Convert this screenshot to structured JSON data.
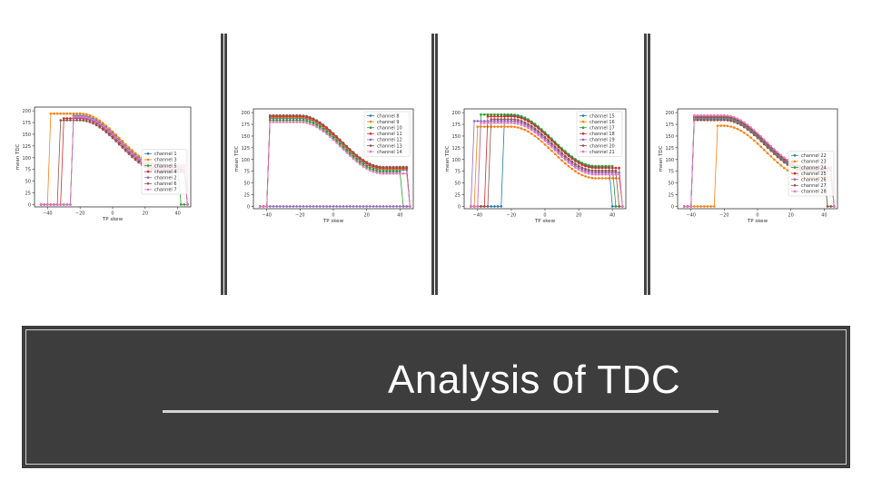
{
  "banner": {
    "title": "Analysis of TDC"
  },
  "chart_data": [
    {
      "type": "line",
      "xlabel": "TP skew",
      "ylabel": "mean TDC",
      "xlim": [
        -48,
        48
      ],
      "ylim": [
        -5,
        208
      ],
      "xticks": [
        -40,
        -20,
        0,
        20,
        40
      ],
      "yticks": [
        0,
        25,
        50,
        75,
        100,
        125,
        150,
        175,
        200
      ],
      "xtick_labels": [
        "−40",
        "−20",
        "0",
        "20",
        "40"
      ],
      "ytick_labels": [
        "0",
        "25",
        "50",
        "75",
        "100",
        "125",
        "150",
        "175",
        "200"
      ],
      "legend_position": "bottom-right",
      "series": [
        {
          "name": "channel 1",
          "color": "#1f77b4",
          "offset": 0,
          "onset": -25,
          "dropout": 46
        },
        {
          "name": "channel 3",
          "color": "#ff7f0e",
          "offset": 4,
          "onset": -38,
          "dropout": 46
        },
        {
          "name": "channel 5",
          "color": "#2ca02c",
          "offset": -2,
          "onset": -25,
          "dropout": 43
        },
        {
          "name": "channel 4",
          "color": "#d62728",
          "offset": -6,
          "onset": -30,
          "dropout": 46
        },
        {
          "name": "channel 2",
          "color": "#9467bd",
          "offset": -4,
          "onset": -25,
          "dropout": 46
        },
        {
          "name": "channel 6",
          "color": "#8c564b",
          "offset": -10,
          "onset": -33,
          "dropout": 46
        },
        {
          "name": "channel 7",
          "color": "#e377c2",
          "offset": -2,
          "onset": -25,
          "dropout": 46
        }
      ]
    },
    {
      "type": "line",
      "xlabel": "TP skew",
      "ylabel": "mean TDC",
      "xlim": [
        -48,
        48
      ],
      "ylim": [
        -5,
        208
      ],
      "xticks": [
        -40,
        -20,
        0,
        20,
        40
      ],
      "yticks": [
        0,
        25,
        50,
        75,
        100,
        125,
        150,
        175,
        200
      ],
      "xtick_labels": [
        "−40",
        "−20",
        "0",
        "20",
        "40"
      ],
      "ytick_labels": [
        "0",
        "25",
        "50",
        "75",
        "100",
        "125",
        "150",
        "175",
        "200"
      ],
      "legend_position": "top-right",
      "series": [
        {
          "name": "channel 8",
          "color": "#1f77b4",
          "offset": -2,
          "onset": -38,
          "dropout": 46
        },
        {
          "name": "channel 9",
          "color": "#ff7f0e",
          "offset": 0,
          "onset": -38,
          "dropout": 46
        },
        {
          "name": "channel 10",
          "color": "#2ca02c",
          "offset": -6,
          "onset": -38,
          "dropout": 43
        },
        {
          "name": "channel 11",
          "color": "#d62728",
          "offset": 2,
          "onset": -38,
          "dropout": 46
        },
        {
          "name": "channel 12",
          "color": "#9467bd",
          "offset": -8,
          "onset": 100,
          "dropout": 46
        },
        {
          "name": "channel 13",
          "color": "#8c564b",
          "offset": 4,
          "onset": -38,
          "dropout": 46
        },
        {
          "name": "channel 14",
          "color": "#e377c2",
          "offset": -10,
          "onset": -38,
          "dropout": 46
        }
      ]
    },
    {
      "type": "line",
      "xlabel": "TP skew",
      "ylabel": "mean TDC",
      "xlim": [
        -48,
        48
      ],
      "ylim": [
        -5,
        208
      ],
      "xticks": [
        -40,
        -20,
        0,
        20,
        40
      ],
      "yticks": [
        0,
        25,
        50,
        75,
        100,
        125,
        150,
        175,
        200
      ],
      "xtick_labels": [
        "−40",
        "−20",
        "0",
        "20",
        "40"
      ],
      "ytick_labels": [
        "0",
        "25",
        "50",
        "75",
        "100",
        "125",
        "150",
        "175",
        "200"
      ],
      "legend_position": "top-right",
      "series": [
        {
          "name": "channel 15",
          "color": "#1f77b4",
          "offset": 4,
          "onset": -25,
          "dropout": 41
        },
        {
          "name": "channel 16",
          "color": "#ff7f0e",
          "offset": -20,
          "onset": -40,
          "dropout": 47
        },
        {
          "name": "channel 17",
          "color": "#2ca02c",
          "offset": 6,
          "onset": -38,
          "dropout": 43
        },
        {
          "name": "channel 18",
          "color": "#d62728",
          "offset": 2,
          "onset": -35,
          "dropout": 46
        },
        {
          "name": "channel 19",
          "color": "#9467bd",
          "offset": -8,
          "onset": -42,
          "dropout": 46
        },
        {
          "name": "channel 20",
          "color": "#8c564b",
          "offset": -4,
          "onset": -33,
          "dropout": 44
        },
        {
          "name": "channel 21",
          "color": "#e377c2",
          "offset": -12,
          "onset": -38,
          "dropout": 46
        }
      ]
    },
    {
      "type": "line",
      "xlabel": "TP skew",
      "ylabel": "mean TDC",
      "xlim": [
        -48,
        48
      ],
      "ylim": [
        -5,
        208
      ],
      "xticks": [
        -40,
        -20,
        0,
        20,
        40
      ],
      "yticks": [
        0,
        25,
        50,
        75,
        100,
        125,
        150,
        175,
        200
      ],
      "xtick_labels": [
        "−40",
        "−20",
        "0",
        "20",
        "40"
      ],
      "ytick_labels": [
        "0",
        "25",
        "50",
        "75",
        "100",
        "125",
        "150",
        "175",
        "200"
      ],
      "legend_position": "bottom-right",
      "series": [
        {
          "name": "channel 22",
          "color": "#1f77b4",
          "offset": 0,
          "onset": -38,
          "dropout": 46
        },
        {
          "name": "channel 23",
          "color": "#ff7f0e",
          "offset": -18,
          "onset": -25,
          "dropout": 46
        },
        {
          "name": "channel 24",
          "color": "#2ca02c",
          "offset": -2,
          "onset": -38,
          "dropout": 43
        },
        {
          "name": "channel 25",
          "color": "#d62728",
          "offset": 2,
          "onset": -38,
          "dropout": 46
        },
        {
          "name": "channel 26",
          "color": "#9467bd",
          "offset": -4,
          "onset": -38,
          "dropout": 46
        },
        {
          "name": "channel 27",
          "color": "#8c564b",
          "offset": -6,
          "onset": -38,
          "dropout": 42
        },
        {
          "name": "channel 28",
          "color": "#e377c2",
          "offset": 4,
          "onset": -38,
          "dropout": 46
        }
      ]
    }
  ]
}
